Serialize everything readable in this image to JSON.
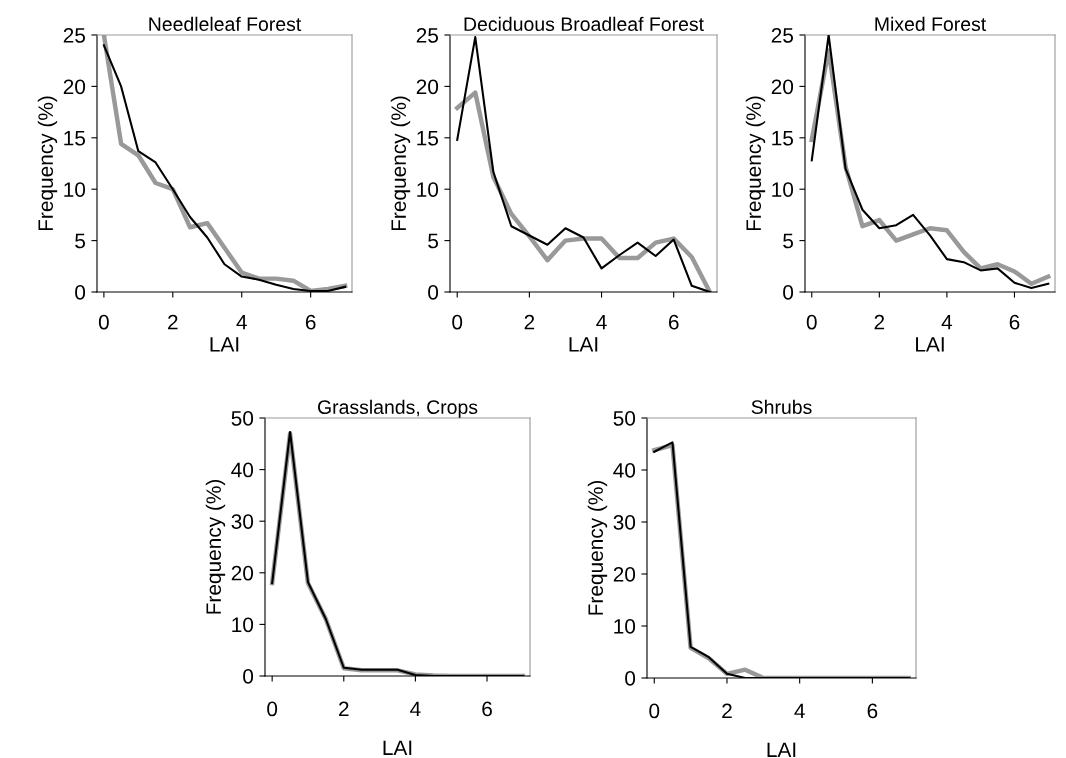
{
  "chart_data": [
    {
      "type": "line",
      "title": "Needleleaf Forest",
      "xlabel": "LAI",
      "ylabel": "Frequency (%)",
      "x": [
        0,
        0.5,
        1,
        1.5,
        2,
        2.5,
        3,
        3.5,
        4,
        4.5,
        5,
        5.5,
        6,
        6.5,
        7
      ],
      "xlim": [
        -0.2,
        7.2
      ],
      "xticks": [
        0,
        2,
        4,
        6
      ],
      "ylim": [
        0,
        25
      ],
      "yticks": [
        0,
        5,
        10,
        15,
        20,
        25
      ],
      "grid": false,
      "legend": false,
      "series": [
        {
          "color": "#999999",
          "values": [
            25,
            14.4,
            13.3,
            10.6,
            10,
            6.3,
            6.7,
            4.3,
            1.9,
            1.3,
            1.3,
            1.1,
            0.1,
            0.3,
            0.6
          ]
        },
        {
          "color": "#000000",
          "values": [
            24,
            20,
            13.7,
            12.6,
            10,
            7.3,
            5.3,
            2.7,
            1.5,
            1.2,
            0.7,
            0.3,
            0.1,
            0.1,
            0.5
          ]
        }
      ]
    },
    {
      "type": "line",
      "title": "Deciduous Broadleaf Forest",
      "xlabel": "LAI",
      "ylabel": "Frequency (%)",
      "x": [
        0,
        0.5,
        1,
        1.5,
        2,
        2.5,
        3,
        3.5,
        4,
        4.5,
        5,
        5.5,
        6,
        6.5,
        7
      ],
      "xlim": [
        -0.2,
        7.2
      ],
      "xticks": [
        0,
        2,
        4,
        6
      ],
      "ylim": [
        0,
        25
      ],
      "yticks": [
        0,
        5,
        10,
        15,
        20,
        25
      ],
      "grid": false,
      "legend": false,
      "series": [
        {
          "color": "#999999",
          "values": [
            17.9,
            19.4,
            11.2,
            7.6,
            5.4,
            3.1,
            5.0,
            5.2,
            5.2,
            3.3,
            3.3,
            4.8,
            5.2,
            3.4,
            0
          ]
        },
        {
          "color": "#000000",
          "values": [
            14.8,
            24.8,
            11.7,
            6.4,
            5.5,
            4.6,
            6.2,
            5.3,
            2.3,
            3.6,
            4.8,
            3.5,
            5.1,
            0.6,
            0
          ]
        }
      ]
    },
    {
      "type": "line",
      "title": "Mixed Forest",
      "xlabel": "LAI",
      "ylabel": "Frequency (%)",
      "x": [
        0,
        0.5,
        1,
        1.5,
        2,
        2.5,
        3,
        3.5,
        4,
        4.5,
        5,
        5.5,
        6,
        6.5,
        7
      ],
      "xlim": [
        -0.2,
        7.2
      ],
      "xticks": [
        0,
        2,
        4,
        6
      ],
      "ylim": [
        0,
        25
      ],
      "yticks": [
        0,
        5,
        10,
        15,
        20,
        25
      ],
      "grid": false,
      "legend": false,
      "series": [
        {
          "color": "#999999",
          "values": [
            14.8,
            23.5,
            12.2,
            6.4,
            7.0,
            5.0,
            5.6,
            6.2,
            6.0,
            3.9,
            2.3,
            2.7,
            2.0,
            0.8,
            1.5
          ]
        },
        {
          "color": "#000000",
          "values": [
            12.8,
            25,
            12,
            8,
            6.2,
            6.5,
            7.5,
            5.5,
            3.2,
            2.9,
            2.1,
            2.3,
            0.9,
            0.4,
            0.8
          ]
        }
      ]
    },
    {
      "type": "line",
      "title": "Grasslands, Crops",
      "xlabel": "LAI",
      "ylabel": "Frequency (%)",
      "x": [
        0,
        0.5,
        1,
        1.5,
        2,
        2.5,
        3,
        3.5,
        4,
        4.5,
        5,
        5.5,
        6,
        6.5,
        7
      ],
      "xlim": [
        -0.2,
        7.2
      ],
      "xticks": [
        0,
        2,
        4,
        6
      ],
      "ylim": [
        0,
        50
      ],
      "yticks": [
        0,
        10,
        20,
        30,
        40,
        50
      ],
      "grid": false,
      "legend": false,
      "series": [
        {
          "color": "#999999",
          "values": [
            18,
            47,
            18,
            11,
            1.5,
            1.1,
            1.1,
            1.1,
            0.3,
            0.1,
            0,
            0,
            0,
            0,
            0
          ]
        },
        {
          "color": "#000000",
          "values": [
            18,
            47.3,
            18.2,
            11,
            1.6,
            1.2,
            1.2,
            1.2,
            0.2,
            0,
            0,
            0,
            0,
            0,
            0
          ]
        }
      ]
    },
    {
      "type": "line",
      "title": "Shrubs",
      "xlabel": "LAI",
      "ylabel": "Frequency (%)",
      "x": [
        0,
        0.5,
        1,
        1.5,
        2,
        2.5,
        3,
        3.5,
        4,
        4.5,
        5,
        5.5,
        6,
        6.5,
        7
      ],
      "xlim": [
        -0.2,
        7.2
      ],
      "xticks": [
        0,
        2,
        4,
        6
      ],
      "ylim": [
        0,
        50
      ],
      "yticks": [
        0,
        10,
        20,
        30,
        40,
        50
      ],
      "grid": false,
      "legend": false,
      "series": [
        {
          "color": "#999999",
          "values": [
            43.8,
            44.8,
            5.8,
            3.8,
            0.8,
            1.6,
            0,
            0,
            0,
            0,
            0,
            0,
            0,
            0,
            0
          ]
        },
        {
          "color": "#000000",
          "values": [
            43.5,
            45.3,
            6,
            4,
            0.8,
            0,
            0,
            0,
            0,
            0,
            0,
            0,
            0,
            0,
            0
          ]
        }
      ]
    }
  ]
}
